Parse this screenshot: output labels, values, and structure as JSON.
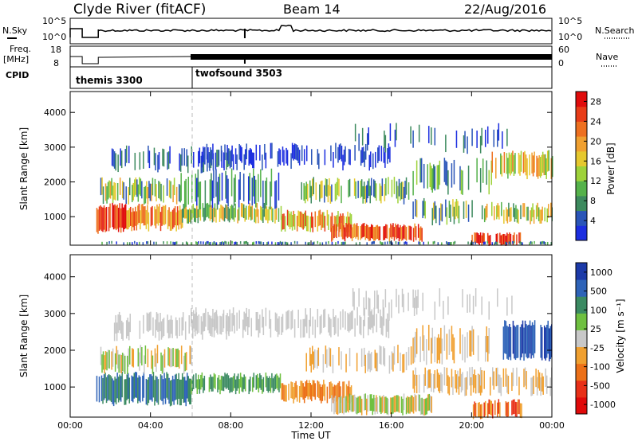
{
  "header": {
    "title": "Clyde River (fitACF)",
    "beam": "Beam 14",
    "date": "22/Aug/2016"
  },
  "params": {
    "nsky_label": "N.Sky",
    "nsearch_label": "N.Search",
    "freq_label_1": "Freq.",
    "freq_label_2": "[MHz]",
    "nave_label": "Nave",
    "cpid_label": "CPID",
    "nsky_ticks": [
      "10^5",
      "10^0"
    ],
    "nsearch_ticks": [
      "10^5",
      "10^0"
    ],
    "freq_ticks": [
      "18",
      "8"
    ],
    "nave_ticks": [
      "60",
      "0"
    ],
    "cpid_modes": [
      {
        "name": "themis 3300",
        "start_hour": 0.0
      },
      {
        "name": "twofsound 3503",
        "start_hour": 6.0
      }
    ]
  },
  "chart_data": [
    {
      "type": "heatmap",
      "name": "power",
      "ylabel": "Slant Range [km]",
      "xlabel": "",
      "y_ticks": [
        1000,
        2000,
        3000,
        4000
      ],
      "ylim": [
        180,
        4600
      ],
      "x_range_hours": [
        0,
        24
      ],
      "colorbar": {
        "label": "Power [dB]",
        "ticks": [
          "4",
          "8",
          "12",
          "16",
          "20",
          "24",
          "28"
        ],
        "range": [
          0,
          30
        ],
        "colors": [
          "#1c2ee0",
          "#2a55b8",
          "#3d8a5e",
          "#55b24a",
          "#9ed23a",
          "#e6c82e",
          "#f0a030",
          "#ee7020",
          "#e83c18",
          "#e00c0c"
        ]
      }
    },
    {
      "type": "heatmap",
      "name": "velocity",
      "ylabel": "Slant Range [km]",
      "xlabel": "Time UT",
      "y_ticks": [
        1000,
        2000,
        3000,
        4000
      ],
      "ylim": [
        180,
        4600
      ],
      "x_ticks": [
        "00:00",
        "04:00",
        "08:00",
        "12:00",
        "16:00",
        "20:00",
        "00:00"
      ],
      "x_range_hours": [
        0,
        24
      ],
      "colorbar": {
        "label": "Velocity [m s⁻¹]",
        "ticks": [
          "1000",
          "500",
          "100",
          "25",
          "-25",
          "-100",
          "-500",
          "-1000"
        ],
        "colors": [
          "#1c3aa8",
          "#2e63b8",
          "#3b8a62",
          "#6fc040",
          "#c8c8c8",
          "#f0a030",
          "#ec7018",
          "#e83018",
          "#e00a0a"
        ]
      }
    }
  ]
}
